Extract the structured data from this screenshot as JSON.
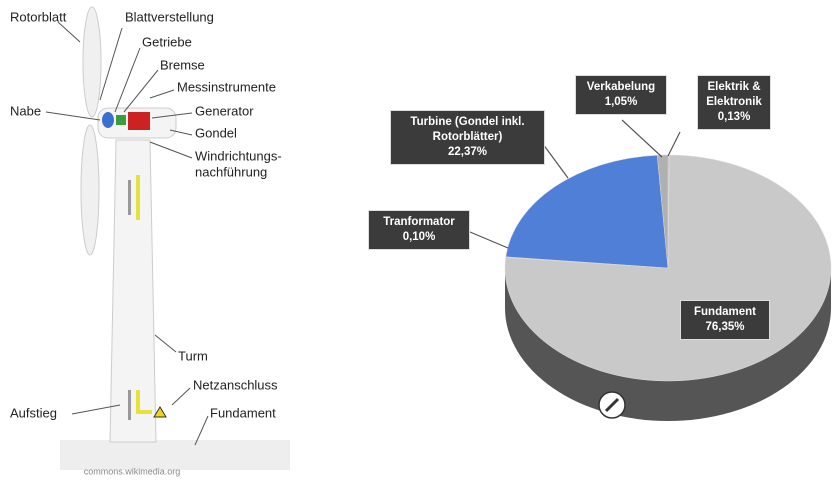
{
  "diagram": {
    "labels": [
      "Rotorblatt",
      "Blattverstellung",
      "Getriebe",
      "Bremse",
      "Messinstrumente",
      "Nabe",
      "Generator",
      "Gondel",
      "Windrichtungs-",
      "nachführung",
      "Turm",
      "Netzanschluss",
      "Aufstieg",
      "Fundament"
    ],
    "credit": "commons.wikimedia.org"
  },
  "chart_data": {
    "type": "pie",
    "categories": [
      "Elektrik & Elektronik",
      "Fundament",
      "Tranformator",
      "Turbine (Gondel inkl. Rotorblätter)",
      "Verkabelung"
    ],
    "values": [
      0.13,
      76.35,
      0.1,
      22.37,
      1.05
    ],
    "value_labels": [
      "0,13%",
      "76,35%",
      "0,10%",
      "22,37%",
      "1,05%"
    ],
    "colors": [
      "#bdbdbd",
      "#c9c9c9",
      "#bdbdbd",
      "#4f7fd6",
      "#b0b0b0"
    ]
  }
}
